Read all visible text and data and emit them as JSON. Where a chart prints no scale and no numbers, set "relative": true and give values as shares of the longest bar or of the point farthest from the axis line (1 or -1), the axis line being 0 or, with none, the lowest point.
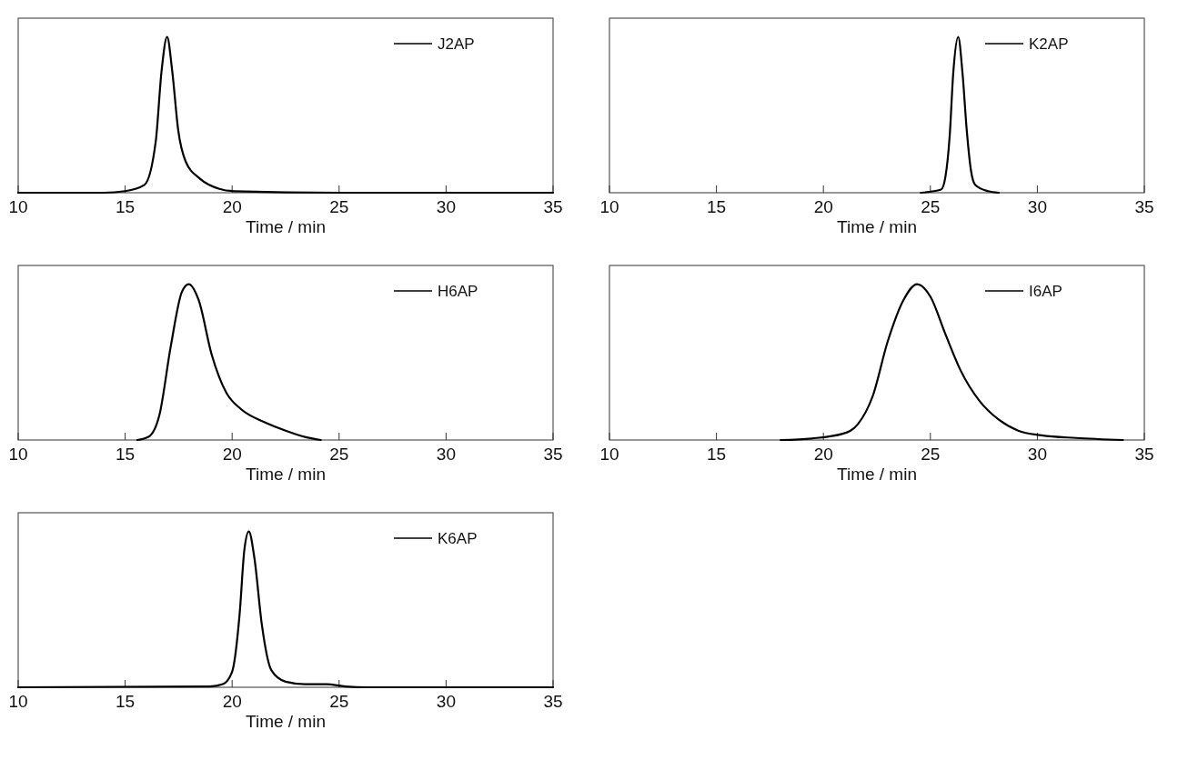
{
  "chart_data": [
    {
      "type": "line",
      "relative": true,
      "xlabel": "Time / min",
      "xlim": [
        10,
        35
      ],
      "xticks": [
        10,
        15,
        20,
        25,
        30,
        35
      ],
      "tick_labels": "x",
      "legend": "top right",
      "series": [
        {
          "name": "J2AP",
          "color": "#000000",
          "x": [
            10,
            14,
            15,
            15.9,
            16.43,
            16.7,
            16.96,
            17.2,
            17.48,
            17.83,
            18.5,
            19.4,
            20.1,
            25,
            35
          ],
          "values": [
            0,
            0,
            0.01,
            0.05,
            0.33,
            0.78,
            1,
            0.78,
            0.4,
            0.2,
            0.09,
            0.025,
            0.01,
            0,
            0
          ]
        }
      ]
    },
    {
      "type": "line",
      "relative": true,
      "xlabel": "Time / min",
      "xlim": [
        10,
        35
      ],
      "xticks": [
        10,
        15,
        20,
        25,
        30,
        35
      ],
      "tick_labels": "x",
      "legend": "top right",
      "series": [
        {
          "name": "K2AP",
          "color": "#000000",
          "x": [
            24.55,
            25.5,
            25.7,
            25.9,
            26.07,
            26.3,
            26.5,
            26.7,
            26.9,
            27.1,
            27.7,
            28.2
          ],
          "values": [
            0,
            0.02,
            0.1,
            0.36,
            0.77,
            1,
            0.77,
            0.4,
            0.14,
            0.05,
            0.01,
            0
          ]
        }
      ]
    },
    {
      "type": "line",
      "relative": true,
      "xlabel": "Time / min",
      "xlim": [
        10,
        35
      ],
      "xticks": [
        10,
        15,
        20,
        25,
        30,
        35
      ],
      "tick_labels": "x",
      "legend": "top right",
      "series": [
        {
          "name": "H6AP",
          "color": "#000000",
          "x": [
            15.57,
            16.09,
            16.6,
            17.13,
            17.65,
            17.97,
            18.43,
            19.04,
            19.74,
            20.4,
            21.5,
            22.5,
            23.4,
            24.14
          ],
          "values": [
            0,
            0.02,
            0.16,
            0.6,
            0.95,
            1,
            0.9,
            0.55,
            0.3,
            0.2,
            0.115,
            0.06,
            0.02,
            0
          ]
        }
      ]
    },
    {
      "type": "line",
      "relative": true,
      "xlabel": "Time / min",
      "xlim": [
        10,
        35
      ],
      "xticks": [
        10,
        15,
        20,
        25,
        30,
        35
      ],
      "tick_labels": "x",
      "legend": "top right",
      "series": [
        {
          "name": "I6AP",
          "color": "#000000",
          "x": [
            18,
            19.46,
            20.9,
            21.6,
            22.3,
            23,
            23.75,
            24.38,
            25,
            25.7,
            26.4,
            27.3,
            28.2,
            29.1,
            30.2,
            31.8,
            34
          ],
          "values": [
            0,
            0.01,
            0.04,
            0.1,
            0.28,
            0.63,
            0.9,
            1,
            0.92,
            0.68,
            0.45,
            0.25,
            0.13,
            0.06,
            0.03,
            0.013,
            0
          ]
        }
      ]
    },
    {
      "type": "line",
      "relative": true,
      "xlabel": "Time / min",
      "xlim": [
        10,
        35
      ],
      "xticks": [
        10,
        15,
        20,
        25,
        30,
        35
      ],
      "tick_labels": "x",
      "legend": "top right",
      "series": [
        {
          "name": "K6AP",
          "color": "#000000",
          "x": [
            10,
            18.96,
            19.57,
            20,
            20.35,
            20.57,
            20.78,
            21.04,
            21.39,
            21.83,
            22.5,
            23.4,
            24.4,
            25.3,
            26.3,
            35
          ],
          "values": [
            0,
            0.005,
            0.02,
            0.1,
            0.47,
            0.88,
            1,
            0.83,
            0.4,
            0.11,
            0.036,
            0.02,
            0.02,
            0.005,
            0,
            0
          ]
        }
      ]
    }
  ]
}
